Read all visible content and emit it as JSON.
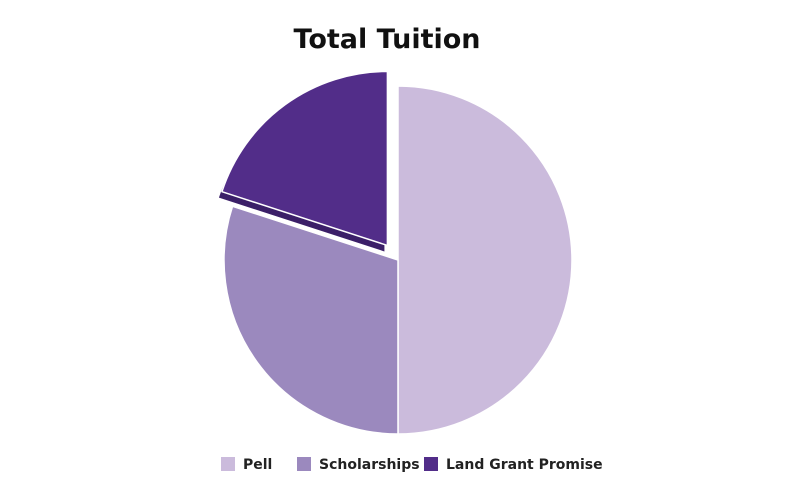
{
  "chart_data": {
    "type": "pie",
    "title": "Total Tuition",
    "categories": [
      "Pell",
      "Scholarships",
      "Land Grant Promise"
    ],
    "values": [
      50,
      30,
      20
    ],
    "unit": "percent",
    "exploded": [
      "Land Grant Promise"
    ],
    "legend_position": "bottom",
    "colors": [
      "#CBBBDC",
      "#9B89BE",
      "#522D89"
    ],
    "shadow_colors": [
      "#B3A3C8",
      "#82709F",
      "#3B1F68"
    ]
  }
}
